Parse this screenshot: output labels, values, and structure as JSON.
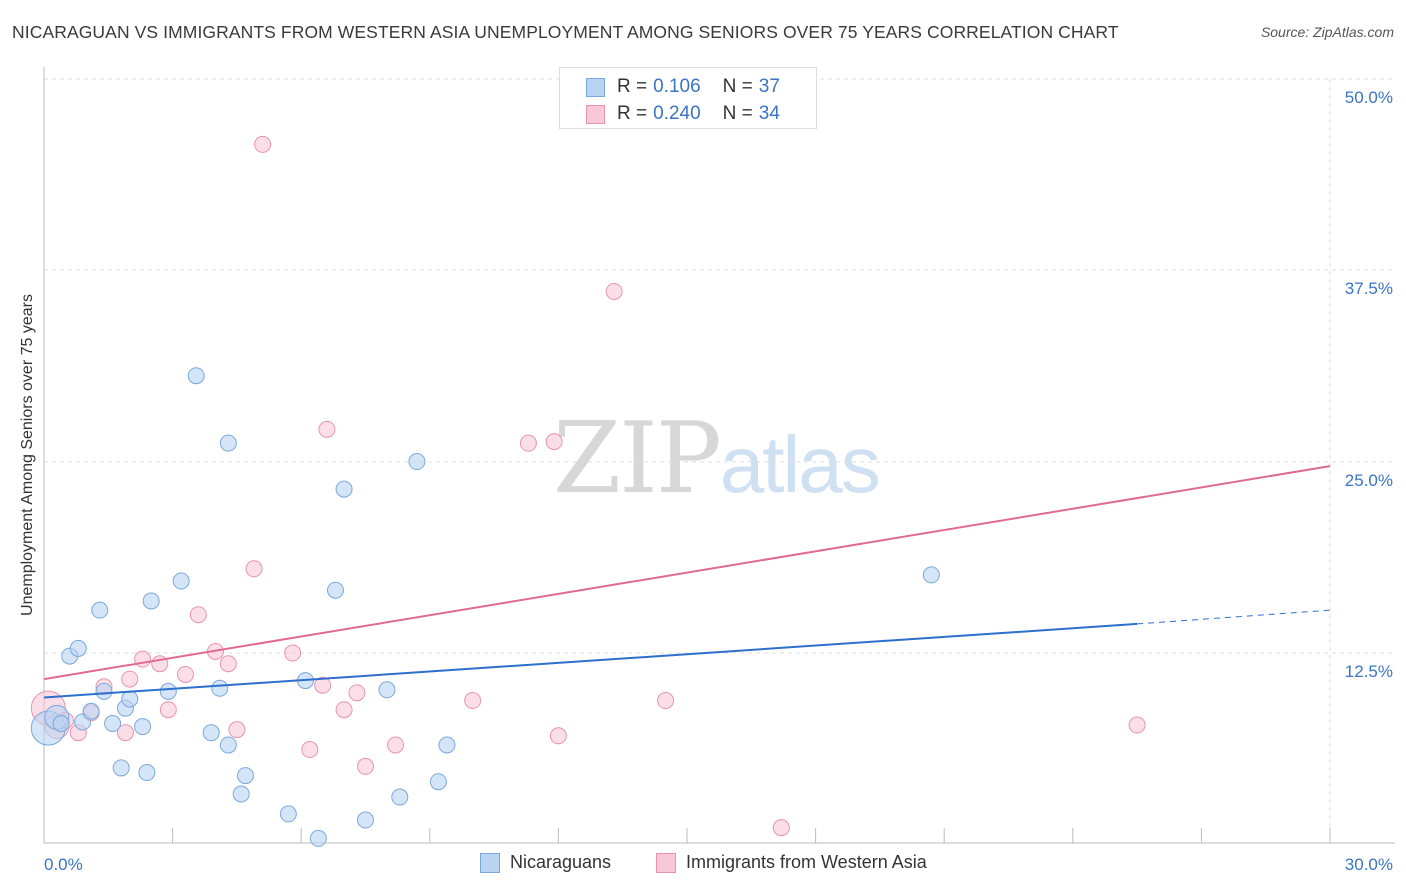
{
  "title": "NICARAGUAN VS IMMIGRANTS FROM WESTERN ASIA UNEMPLOYMENT AMONG SENIORS OVER 75 YEARS CORRELATION CHART",
  "source": "Source: ZipAtlas.com",
  "watermark": {
    "zip": "ZIP",
    "atlas": "atlas"
  },
  "legend": {
    "rows": [
      {
        "r_label": "R =",
        "r_value": "0.106",
        "n_label": "N =",
        "n_value": "37"
      },
      {
        "r_label": "R =",
        "r_value": "0.240",
        "n_label": "N =",
        "n_value": "34"
      }
    ]
  },
  "bottom_legend": {
    "series1": "Nicaraguans",
    "series2": "Immigrants from Western Asia"
  },
  "colors": {
    "blue_fill": "#b9d3f3",
    "blue_stroke": "#7aa8dc",
    "blue_line": "#2c6fcd",
    "pink_fill": "#f8c8d7",
    "pink_stroke": "#e993b0",
    "pink_line": "#e06a93",
    "tick_label": "#3a74c4",
    "grid": "#dddddd"
  },
  "chart_data": {
    "type": "scatter",
    "title": "NICARAGUAN VS IMMIGRANTS FROM WESTERN ASIA UNEMPLOYMENT AMONG SENIORS OVER 75 YEARS CORRELATION CHART",
    "xlabel": "",
    "ylabel": "Unemployment Among Seniors over 75 years",
    "xlim": [
      0,
      30
    ],
    "ylim": [
      0,
      50
    ],
    "x_tick_labels": [
      {
        "value": 0,
        "label": "0.0%"
      },
      {
        "value": 30,
        "label": "30.0%"
      }
    ],
    "y_tick_labels": [
      {
        "value": 12.5,
        "label": "12.5%"
      },
      {
        "value": 25,
        "label": "25.0%"
      },
      {
        "value": 37.5,
        "label": "37.5%"
      },
      {
        "value": 50,
        "label": "50.0%"
      }
    ],
    "series": [
      {
        "name": "Nicaraguans",
        "r": 0.106,
        "n": 37,
        "trend": {
          "x0": 0,
          "y0": 9.5,
          "x1": 25.5,
          "y1": 14.3,
          "dash_to_x": 30,
          "dash_to_y": 15.2
        },
        "points": [
          {
            "x": 0.1,
            "y": 7.5,
            "size": "large"
          },
          {
            "x": 0.3,
            "y": 8.2,
            "size": "medium"
          },
          {
            "x": 0.4,
            "y": 7.8
          },
          {
            "x": 0.6,
            "y": 12.2
          },
          {
            "x": 0.8,
            "y": 12.7
          },
          {
            "x": 0.9,
            "y": 7.9
          },
          {
            "x": 1.1,
            "y": 8.6
          },
          {
            "x": 1.3,
            "y": 15.2
          },
          {
            "x": 1.4,
            "y": 9.9
          },
          {
            "x": 1.6,
            "y": 7.8
          },
          {
            "x": 1.8,
            "y": 4.9
          },
          {
            "x": 1.9,
            "y": 8.8
          },
          {
            "x": 2.0,
            "y": 9.4
          },
          {
            "x": 2.3,
            "y": 7.6
          },
          {
            "x": 2.4,
            "y": 4.6
          },
          {
            "x": 2.5,
            "y": 15.8
          },
          {
            "x": 2.9,
            "y": 9.9
          },
          {
            "x": 3.2,
            "y": 17.1
          },
          {
            "x": 3.55,
            "y": 30.5
          },
          {
            "x": 3.9,
            "y": 7.2
          },
          {
            "x": 4.1,
            "y": 10.1
          },
          {
            "x": 4.3,
            "y": 6.4
          },
          {
            "x": 4.3,
            "y": 26.1
          },
          {
            "x": 4.6,
            "y": 3.2
          },
          {
            "x": 4.7,
            "y": 4.4
          },
          {
            "x": 5.7,
            "y": 1.9
          },
          {
            "x": 6.1,
            "y": 10.6
          },
          {
            "x": 6.4,
            "y": 0.3
          },
          {
            "x": 6.8,
            "y": 16.5
          },
          {
            "x": 7.0,
            "y": 23.1
          },
          {
            "x": 7.5,
            "y": 1.5
          },
          {
            "x": 8.0,
            "y": 10.0
          },
          {
            "x": 8.3,
            "y": 3.0
          },
          {
            "x": 8.7,
            "y": 24.9
          },
          {
            "x": 9.2,
            "y": 4.0
          },
          {
            "x": 9.4,
            "y": 6.4
          },
          {
            "x": 20.7,
            "y": 17.5
          }
        ]
      },
      {
        "name": "Immigrants from Western Asia",
        "r": 0.24,
        "n": 34,
        "trend": {
          "x0": 0,
          "y0": 10.7,
          "x1": 30,
          "y1": 24.6
        },
        "points": [
          {
            "x": 0.1,
            "y": 8.8,
            "size": "large"
          },
          {
            "x": 0.3,
            "y": 7.6,
            "size": "medium"
          },
          {
            "x": 0.5,
            "y": 8.0
          },
          {
            "x": 0.8,
            "y": 7.2
          },
          {
            "x": 1.1,
            "y": 8.5
          },
          {
            "x": 1.4,
            "y": 10.2
          },
          {
            "x": 1.9,
            "y": 7.2
          },
          {
            "x": 2.0,
            "y": 10.7
          },
          {
            "x": 2.3,
            "y": 12.0
          },
          {
            "x": 2.7,
            "y": 11.7
          },
          {
            "x": 2.9,
            "y": 8.7
          },
          {
            "x": 3.3,
            "y": 11.0
          },
          {
            "x": 3.6,
            "y": 14.9
          },
          {
            "x": 4.0,
            "y": 12.5
          },
          {
            "x": 4.3,
            "y": 11.7
          },
          {
            "x": 4.5,
            "y": 7.4
          },
          {
            "x": 4.9,
            "y": 17.9
          },
          {
            "x": 5.1,
            "y": 45.6
          },
          {
            "x": 5.8,
            "y": 12.4
          },
          {
            "x": 6.2,
            "y": 6.1
          },
          {
            "x": 6.5,
            "y": 10.3
          },
          {
            "x": 6.6,
            "y": 27.0
          },
          {
            "x": 7.0,
            "y": 8.7
          },
          {
            "x": 7.3,
            "y": 9.8
          },
          {
            "x": 7.5,
            "y": 5.0
          },
          {
            "x": 8.2,
            "y": 6.4
          },
          {
            "x": 10.0,
            "y": 9.3
          },
          {
            "x": 11.3,
            "y": 26.1
          },
          {
            "x": 11.9,
            "y": 26.2
          },
          {
            "x": 12.0,
            "y": 7.0
          },
          {
            "x": 13.3,
            "y": 36.0
          },
          {
            "x": 14.5,
            "y": 9.3
          },
          {
            "x": 17.2,
            "y": 1.0
          },
          {
            "x": 25.5,
            "y": 7.7
          }
        ]
      }
    ]
  }
}
